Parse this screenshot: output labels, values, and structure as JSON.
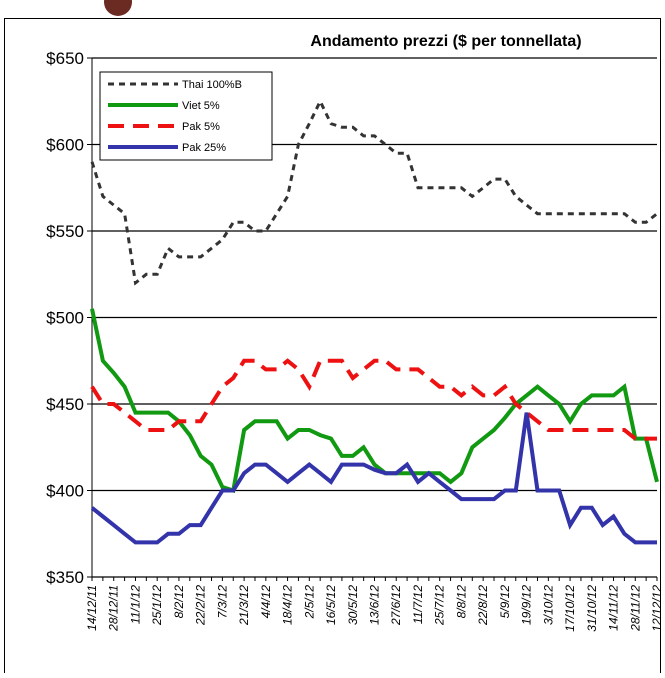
{
  "chart_data": {
    "type": "line",
    "title": "Andamento prezzi ($ per tonnellata)",
    "categories": [
      "14/12/11",
      null,
      "28/12/11",
      null,
      "11/1/12",
      null,
      "25/1/12",
      null,
      "8/2/12",
      null,
      "22/2/12",
      null,
      "7/3/12",
      null,
      "21/3/12",
      null,
      "4/4/12",
      null,
      "18/4/12",
      null,
      "2/5/12",
      null,
      "16/5/12",
      null,
      "30/5/12",
      null,
      "13/6/12",
      null,
      "27/6/12",
      null,
      "11/7/12",
      null,
      "25/7/12",
      null,
      "8/8/12",
      null,
      "22/8/12",
      null,
      "5/9/12",
      null,
      "19/9/12",
      null,
      "3/10/12",
      null,
      "17/10/12",
      null,
      "31/10/12",
      null,
      "14/11/12",
      null,
      "28/11/12",
      null,
      "12/12/12"
    ],
    "series": [
      {
        "name": "Thai 100%B",
        "color": "#333333",
        "dash": "dashed",
        "values": [
          590,
          570,
          565,
          560,
          520,
          525,
          525,
          540,
          535,
          535,
          535,
          540,
          545,
          555,
          555,
          550,
          550,
          560,
          570,
          600,
          612,
          625,
          612,
          610,
          610,
          605,
          605,
          600,
          595,
          595,
          575,
          575,
          575,
          575,
          575,
          570,
          575,
          580,
          580,
          570,
          565,
          560,
          560,
          560,
          560,
          560,
          560,
          560,
          560,
          560,
          555,
          555,
          560
        ]
      },
      {
        "name": "Viet 5%",
        "color": "#119911",
        "dash": "solid",
        "values": [
          505,
          475,
          468,
          460,
          445,
          445,
          445,
          445,
          440,
          432,
          420,
          415,
          402,
          400,
          435,
          440,
          440,
          440,
          430,
          435,
          435,
          432,
          430,
          420,
          420,
          425,
          415,
          410,
          410,
          410,
          410,
          410,
          410,
          405,
          410,
          425,
          430,
          435,
          442,
          450,
          455,
          460,
          455,
          450,
          440,
          450,
          455,
          455,
          455,
          460,
          430,
          430,
          405
        ]
      },
      {
        "name": "Pak 5%",
        "color": "#ee1111",
        "dash": "longdash",
        "values": [
          460,
          450,
          450,
          445,
          440,
          435,
          435,
          435,
          440,
          440,
          440,
          450,
          460,
          465,
          475,
          475,
          470,
          470,
          475,
          470,
          460,
          475,
          475,
          475,
          465,
          470,
          475,
          475,
          470,
          470,
          470,
          465,
          460,
          460,
          455,
          460,
          455,
          455,
          460,
          450,
          445,
          440,
          435,
          435,
          435,
          435,
          435,
          435,
          435,
          435,
          430,
          430,
          430
        ]
      },
      {
        "name": "Pak 25%",
        "color": "#3333aa",
        "dash": "solid",
        "values": [
          390,
          385,
          380,
          375,
          370,
          370,
          370,
          375,
          375,
          380,
          380,
          390,
          400,
          400,
          410,
          415,
          415,
          410,
          405,
          410,
          415,
          410,
          405,
          415,
          415,
          415,
          412,
          410,
          410,
          415,
          405,
          410,
          405,
          400,
          395,
          395,
          395,
          395,
          400,
          400,
          445,
          400,
          400,
          400,
          380,
          390,
          390,
          380,
          385,
          375,
          370,
          370,
          370
        ]
      }
    ],
    "ylim": [
      350,
      650
    ],
    "yticks": [
      {
        "value": 350,
        "label": "$350"
      },
      {
        "value": 400,
        "label": "$400"
      },
      {
        "value": 450,
        "label": "$450"
      },
      {
        "value": 500,
        "label": "$500"
      },
      {
        "value": 550,
        "label": "$550"
      },
      {
        "value": 600,
        "label": "$600"
      },
      {
        "value": 650,
        "label": "$650"
      }
    ],
    "grid": true,
    "legend": "upper left"
  }
}
